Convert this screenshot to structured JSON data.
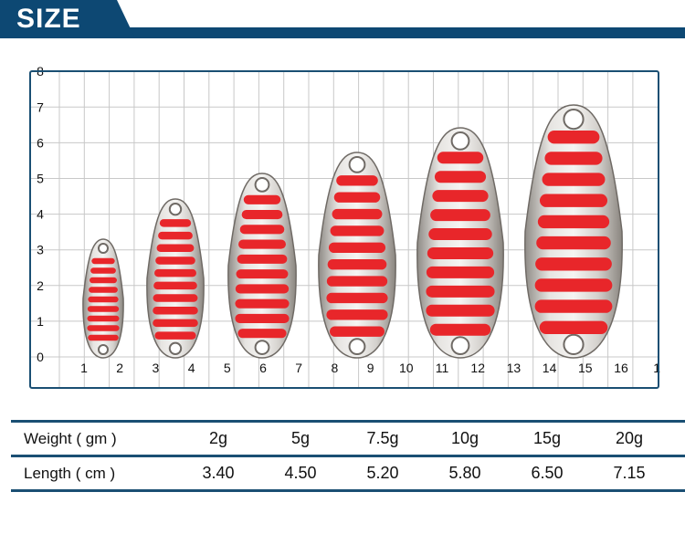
{
  "header": {
    "title": "SIZE"
  },
  "ruler": {
    "y_labels": [
      "0",
      "1",
      "2",
      "3",
      "4",
      "5",
      "6",
      "7",
      "8"
    ],
    "x_labels": [
      "1",
      "2",
      "3",
      "4",
      "5",
      "6",
      "7",
      "8",
      "9",
      "10",
      "11",
      "12",
      "13",
      "14",
      "15",
      "16",
      "1"
    ]
  },
  "colors": {
    "header": "#0d4873",
    "stripe": "#e8262a",
    "metal": "#c9c6c2"
  },
  "table": {
    "rows": [
      {
        "label": "Weight ( gm )",
        "values": [
          "2g",
          "5g",
          "7.5g",
          "10g",
          "15g",
          "20g"
        ]
      },
      {
        "label": "Length ( cm )",
        "values": [
          "3.40",
          "4.50",
          "5.20",
          "5.80",
          "6.50",
          "7.15"
        ]
      }
    ]
  }
}
